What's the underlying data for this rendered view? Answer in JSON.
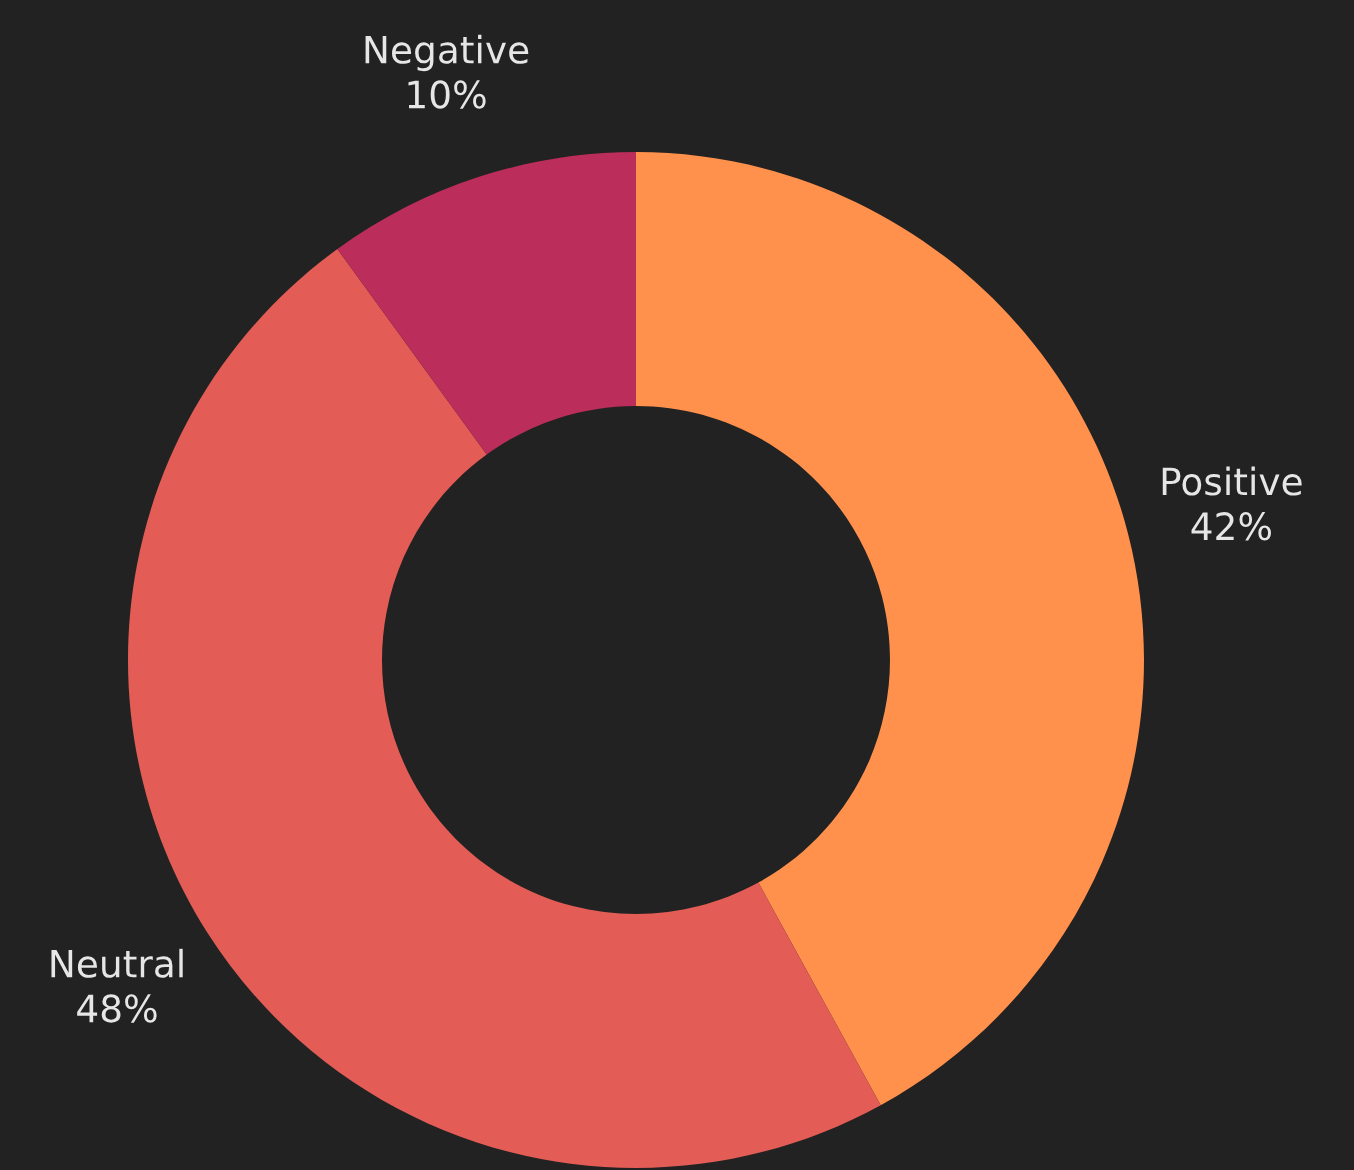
{
  "chart_data": {
    "type": "donut",
    "categories": [
      "Positive",
      "Neutral",
      "Negative"
    ],
    "values": [
      42,
      48,
      10
    ],
    "value_labels": [
      "42%",
      "48%",
      "10%"
    ],
    "colors": [
      "#ff914d",
      "#e35d56",
      "#bb2d5a"
    ],
    "legend": false
  }
}
